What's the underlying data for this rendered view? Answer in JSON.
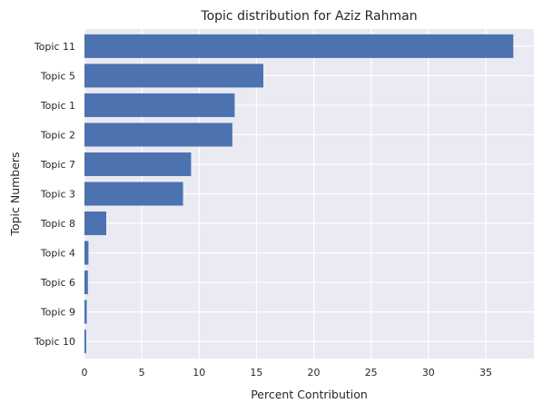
{
  "chart_data": {
    "type": "bar",
    "orientation": "horizontal",
    "title": "Topic distribution for Aziz Rahman",
    "xlabel": "Percent Contribution",
    "ylabel": "Topic Numbers",
    "categories": [
      "Topic 11",
      "Topic 5",
      "Topic 1",
      "Topic 2",
      "Topic 7",
      "Topic 3",
      "Topic 8",
      "Topic 4",
      "Topic 6",
      "Topic 9",
      "Topic 10"
    ],
    "values": [
      37.4,
      15.6,
      13.1,
      12.9,
      9.3,
      8.6,
      1.9,
      0.35,
      0.3,
      0.2,
      0.15
    ],
    "xlim": [
      0,
      39.2
    ],
    "xticks": [
      0,
      5,
      10,
      15,
      20,
      25,
      30,
      35
    ],
    "grid": true,
    "legend": "none",
    "colors": {
      "bar": "#4c72b0",
      "plot_background": "#eaeaf2",
      "grid": "#ffffff",
      "text": "#262626"
    }
  }
}
